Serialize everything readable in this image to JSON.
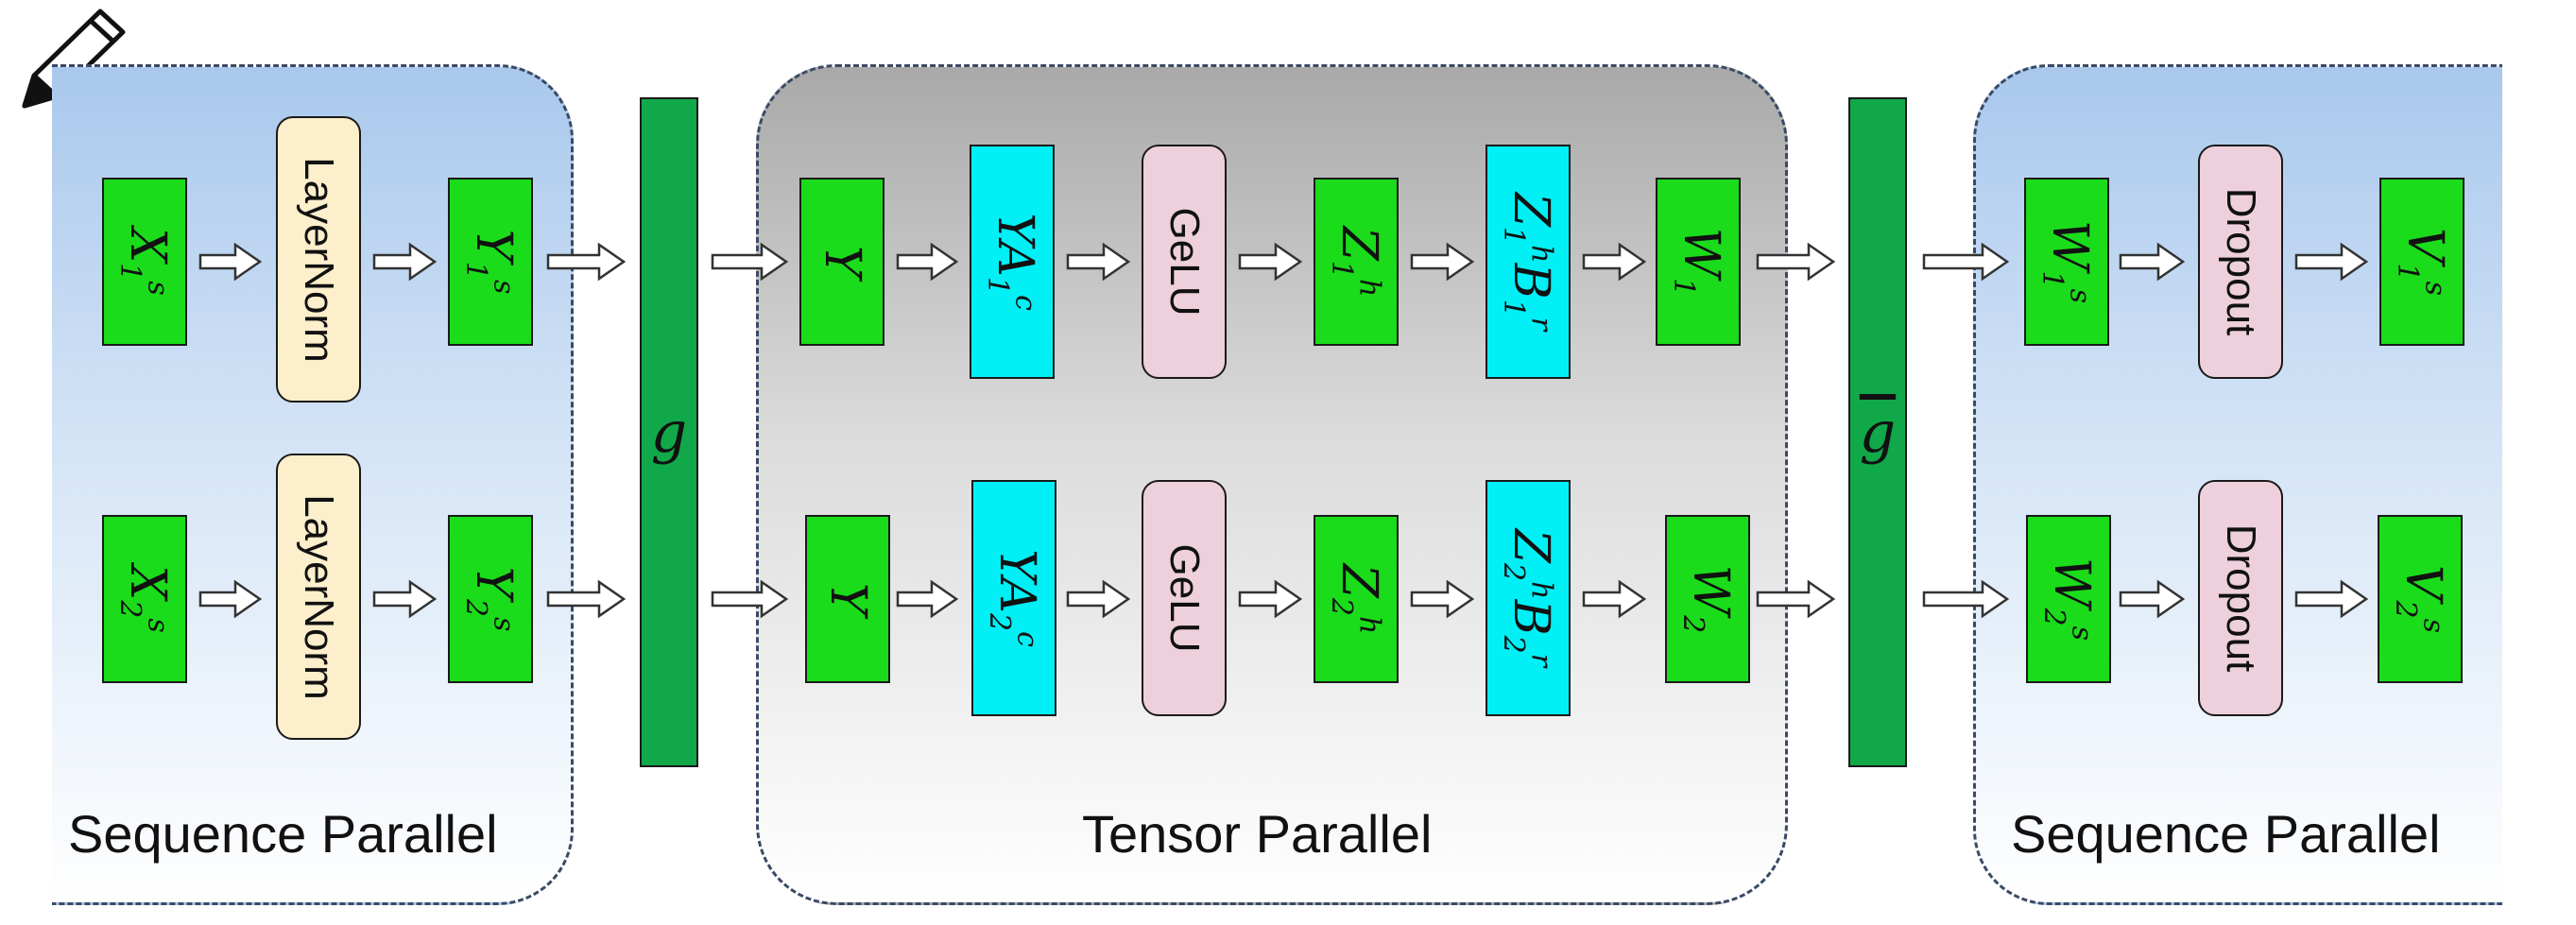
{
  "regions": {
    "left": "Sequence Parallel",
    "middle": "Tensor Parallel",
    "right": "Sequence Parallel"
  },
  "ops": {
    "g": "g",
    "g_bar": "g",
    "layernorm": "LayerNorm",
    "gelu": "GeLU",
    "dropout": "Dropout"
  },
  "rows": [
    {
      "x": {
        "base": "X",
        "sub": "1",
        "sup": "s"
      },
      "y": {
        "base": "Y",
        "sub": "1",
        "sup": "s"
      },
      "ty": {
        "base": "Y",
        "sub": "",
        "sup": ""
      },
      "ya": {
        "base": "YA",
        "sub": "1",
        "sup": "c"
      },
      "z": {
        "base": "Z",
        "sub": "1",
        "sup": "h"
      },
      "zb": {
        "base": "Z",
        "sub": "1",
        "sup": "h",
        "base2": "B",
        "sub2": "1",
        "sup2": "r"
      },
      "w": {
        "base": "W",
        "sub": "1",
        "sup": ""
      },
      "ws": {
        "base": "W",
        "sub": "1",
        "sup": "s"
      },
      "v": {
        "base": "V",
        "sub": "1",
        "sup": "s"
      }
    },
    {
      "x": {
        "base": "X",
        "sub": "2",
        "sup": "s"
      },
      "y": {
        "base": "Y",
        "sub": "2",
        "sup": "s"
      },
      "ty": {
        "base": "Y",
        "sub": "",
        "sup": ""
      },
      "ya": {
        "base": "YA",
        "sub": "2",
        "sup": "c"
      },
      "z": {
        "base": "Z",
        "sub": "2",
        "sup": "h"
      },
      "zb": {
        "base": "Z",
        "sub": "2",
        "sup": "h",
        "base2": "B",
        "sub2": "2",
        "sup2": "r"
      },
      "w": {
        "base": "W",
        "sub": "2",
        "sup": ""
      },
      "ws": {
        "base": "W",
        "sub": "2",
        "sup": "s"
      },
      "v": {
        "base": "V",
        "sub": "2",
        "sup": "s"
      }
    }
  ],
  "colors": {
    "data_block": "#1bdc1b",
    "matmul_block": "#00f0f6",
    "layernorm_block": "#fdefcc",
    "activation_block": "#edd0dc",
    "comm_bar": "#11a84a"
  },
  "icons": [
    "pencil-icon"
  ]
}
